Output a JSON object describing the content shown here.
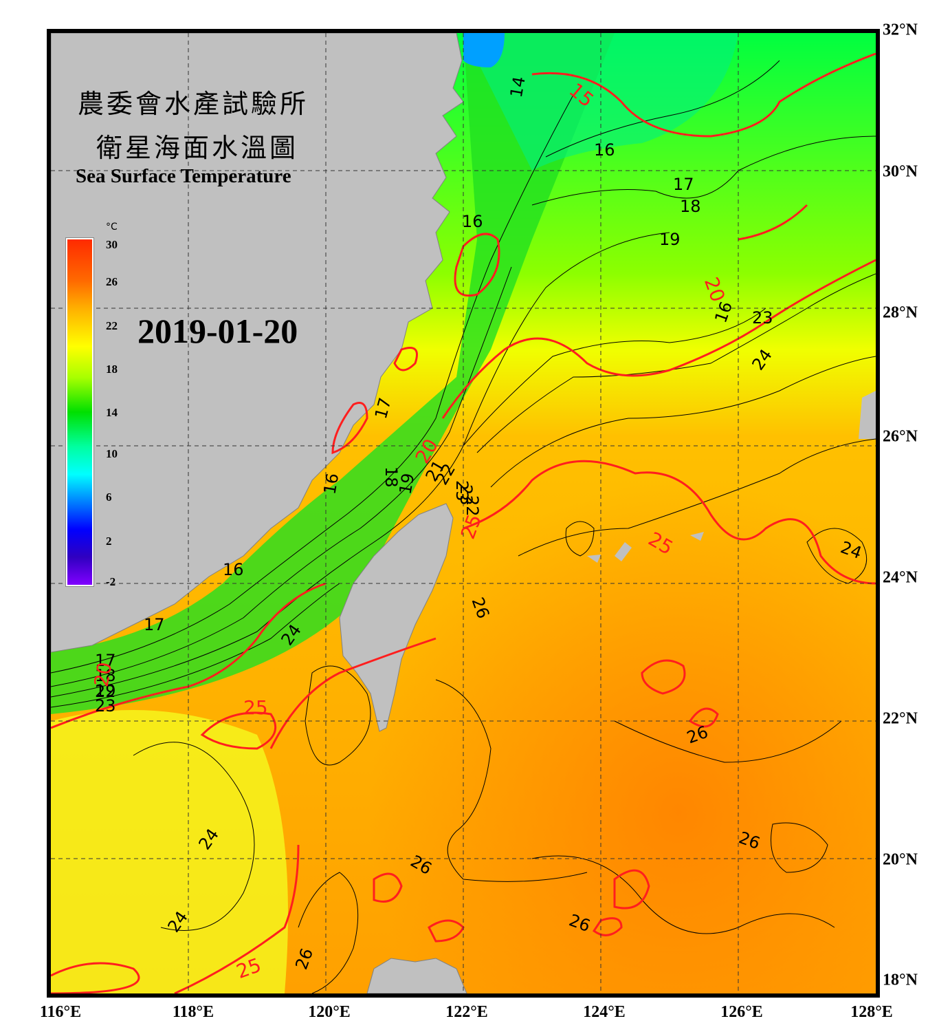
{
  "title": {
    "line1": "農委會水產試驗所",
    "line2": "衛星海面水溫圖",
    "english": "Sea Surface Temperature"
  },
  "date": "2019-01-20",
  "colorbar": {
    "unit": "°C",
    "ticks": [
      "30",
      "26",
      "22",
      "18",
      "14",
      "10",
      "6",
      "2",
      "-2"
    ],
    "range": [
      -2,
      30
    ]
  },
  "axes": {
    "latitude_labels": [
      "32°N",
      "30°N",
      "28°N",
      "26°N",
      "24°N",
      "22°N",
      "20°N",
      "18°N"
    ],
    "longitude_labels": [
      "116°E",
      "118°E",
      "120°E",
      "122°E",
      "124°E",
      "126°E",
      "128°E"
    ],
    "lon_range": [
      116,
      128
    ],
    "lat_range": [
      18,
      32
    ]
  },
  "contour_labels": {
    "black": [
      "14",
      "16",
      "17",
      "18",
      "19",
      "16",
      "17",
      "16",
      "17",
      "18",
      "19",
      "16",
      "16",
      "17",
      "18",
      "19",
      "21",
      "22",
      "23",
      "24",
      "23",
      "24",
      "24",
      "26",
      "26",
      "24",
      "26",
      "26",
      "24",
      "26",
      "26",
      "22",
      "23",
      "22",
      "23"
    ],
    "red": [
      "15",
      "20",
      "20",
      "25",
      "25",
      "25",
      "25",
      "20"
    ]
  },
  "colors": {
    "land": "#c0c0c0",
    "contour_black": "#000000",
    "contour_red": "#ff1e1e",
    "grid": "#333333"
  }
}
